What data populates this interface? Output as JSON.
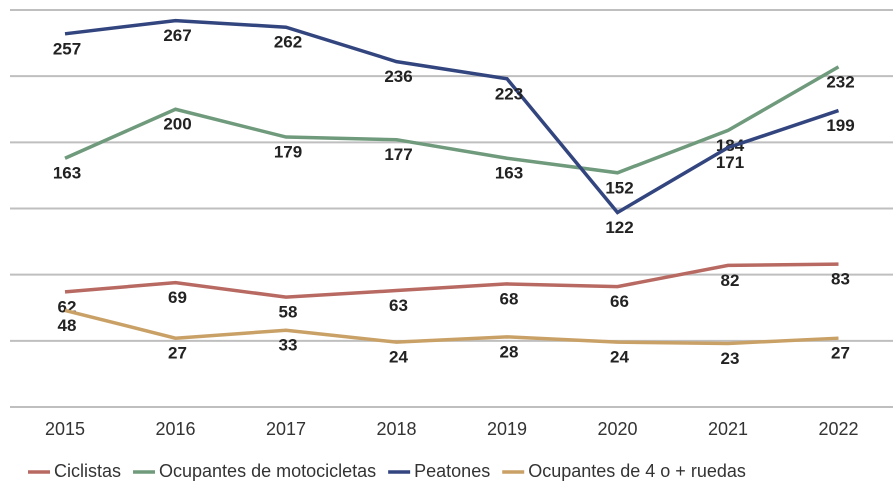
{
  "chart_data": {
    "type": "line",
    "categories": [
      "2015",
      "2016",
      "2017",
      "2018",
      "2019",
      "2020",
      "2021",
      "2022"
    ],
    "series": [
      {
        "name": "Ciclistas",
        "color": "#b86a62",
        "values": [
          62,
          69,
          58,
          63,
          68,
          66,
          82,
          83
        ]
      },
      {
        "name": "Ocupantes de motocicletas",
        "color": "#6f9a7c",
        "values": [
          163,
          200,
          179,
          177,
          163,
          152,
          184,
          232
        ]
      },
      {
        "name": "Peatones",
        "color": "#33457f",
        "values": [
          257,
          267,
          262,
          236,
          223,
          122,
          171,
          199
        ]
      },
      {
        "name": "Ocupantes de 4 o + ruedas",
        "color": "#c9a167",
        "values": [
          48,
          27,
          33,
          24,
          28,
          24,
          23,
          27
        ]
      }
    ],
    "ylim": [
      -25,
      275
    ],
    "yticks": [
      -25,
      25,
      75,
      125,
      175,
      225,
      275
    ],
    "grid": true
  }
}
